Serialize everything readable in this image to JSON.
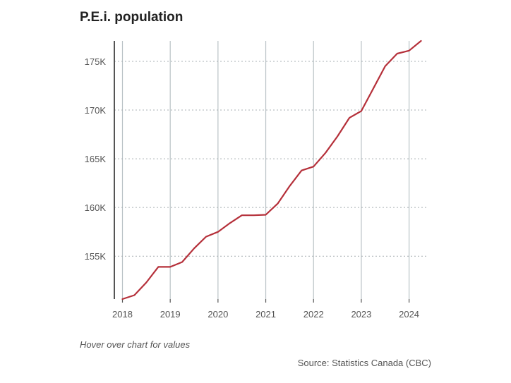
{
  "chart_data": {
    "type": "line",
    "title": "P.E.i. population",
    "xlabel": "",
    "ylabel": "",
    "x_ticks": [
      "2018",
      "2019",
      "2020",
      "2021",
      "2022",
      "2023",
      "2024"
    ],
    "y_ticks": [
      {
        "value": 155000,
        "label": "155K"
      },
      {
        "value": 160000,
        "label": "160K"
      },
      {
        "value": 165000,
        "label": "165K"
      },
      {
        "value": 170000,
        "label": "170K"
      },
      {
        "value": 175000,
        "label": "175K"
      }
    ],
    "xlim": [
      2018,
      2024.25
    ],
    "ylim": [
      150600,
      177100
    ],
    "grid": true,
    "series": [
      {
        "name": "P.E.i. population",
        "color": "#b5303a",
        "x": [
          2018.0,
          2018.25,
          2018.5,
          2018.75,
          2019.0,
          2019.25,
          2019.5,
          2019.75,
          2020.0,
          2020.25,
          2020.5,
          2020.75,
          2021.0,
          2021.25,
          2021.5,
          2021.75,
          2022.0,
          2022.25,
          2022.5,
          2022.75,
          2023.0,
          2023.25,
          2023.5,
          2023.75,
          2024.0,
          2024.25
        ],
        "values": [
          150600,
          151000,
          152300,
          153900,
          153900,
          154400,
          155800,
          157000,
          157500,
          158400,
          159200,
          159200,
          159250,
          160400,
          162200,
          163800,
          164200,
          165600,
          167300,
          169200,
          169900,
          172200,
          174500,
          175800,
          176100,
          177100
        ]
      }
    ]
  },
  "notes": {
    "hover": "Hover over chart for values",
    "source": "Source: Statistics Canada (CBC)"
  },
  "colors": {
    "line": "#b5303a",
    "grid_horizontal": "#a9b0b4",
    "grid_vertical": "#b9c2c6",
    "axis": "#555555"
  }
}
